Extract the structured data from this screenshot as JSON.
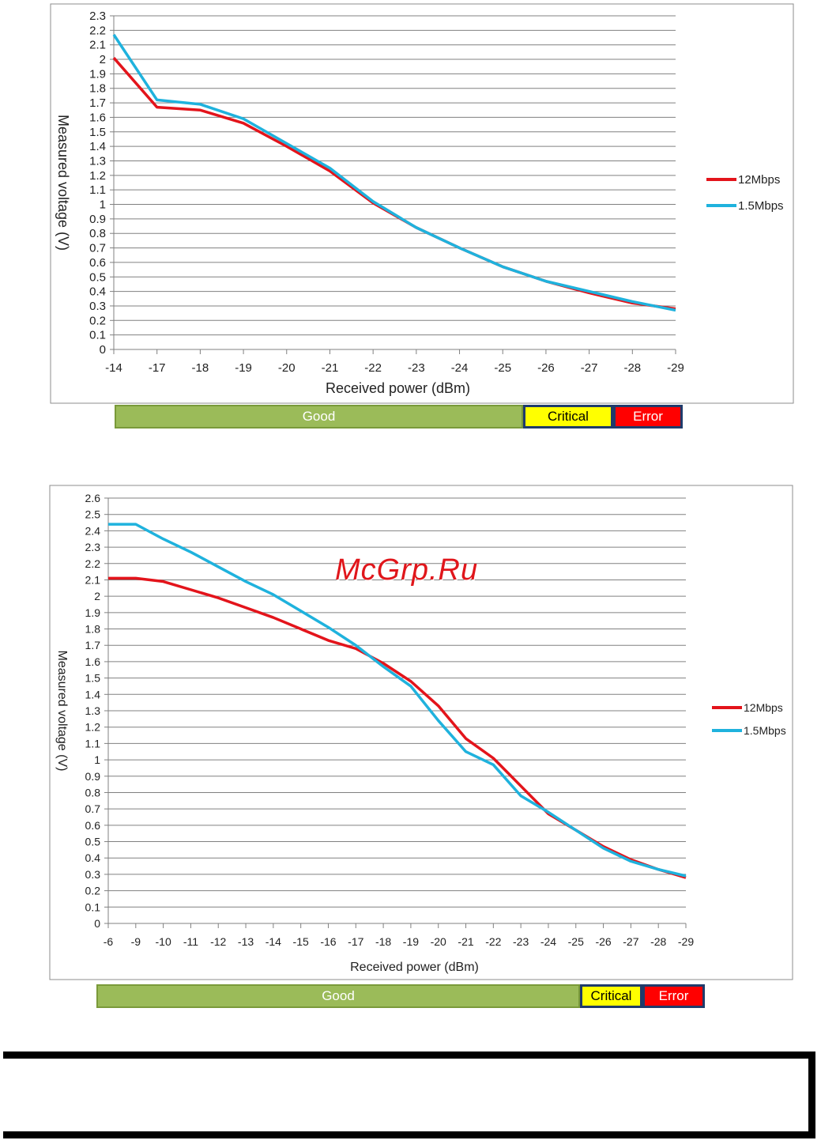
{
  "chart_data": [
    {
      "type": "line",
      "title": "",
      "xlabel": "Received power (dBm)",
      "ylabel": "Measured voltage (V)",
      "categories": [
        "-14",
        "-17",
        "-18",
        "-19",
        "-20",
        "-21",
        "-22",
        "-23",
        "-24",
        "-25",
        "-26",
        "-27",
        "-28",
        "-29"
      ],
      "ylim": [
        0,
        2.3
      ],
      "ytick_step": 0.1,
      "yticks": [
        "0",
        "0.1",
        "0.2",
        "0.3",
        "0.4",
        "0.5",
        "0.6",
        "0.7",
        "0.8",
        "0.9",
        "1",
        "1.1",
        "1.2",
        "1.3",
        "1.4",
        "1.5",
        "1.6",
        "1.7",
        "1.8",
        "1.9",
        "2",
        "2.1",
        "2.2",
        "2.3"
      ],
      "grid": true,
      "legend": "right",
      "series": [
        {
          "name": "12Mbps",
          "color": "#e3141b",
          "values": [
            2.01,
            1.67,
            1.65,
            1.56,
            1.4,
            1.23,
            1.01,
            0.84,
            0.7,
            0.57,
            0.47,
            0.39,
            0.32,
            0.28
          ]
        },
        {
          "name": "1.5Mbps",
          "color": "#1fb2dd",
          "values": [
            2.17,
            1.72,
            1.69,
            1.59,
            1.42,
            1.25,
            1.02,
            0.84,
            0.7,
            0.57,
            0.47,
            0.4,
            0.33,
            0.27
          ]
        }
      ]
    },
    {
      "type": "line",
      "title": "",
      "xlabel": "Received power (dBm)",
      "ylabel": "Measured voltage (V)",
      "categories": [
        "-6",
        "-9",
        "-10",
        "-11",
        "-12",
        "-13",
        "-14",
        "-15",
        "-16",
        "-17",
        "-18",
        "-19",
        "-20",
        "-21",
        "-22",
        "-23",
        "-24",
        "-25",
        "-26",
        "-27",
        "-28",
        "-29"
      ],
      "ylim": [
        0,
        2.6
      ],
      "ytick_step": 0.1,
      "yticks": [
        "0",
        "0.1",
        "0.2",
        "0.3",
        "0.4",
        "0.5",
        "0.6",
        "0.7",
        "0.8",
        "0.9",
        "1",
        "1.1",
        "1.2",
        "1.3",
        "1.4",
        "1.5",
        "1.6",
        "1.7",
        "1.8",
        "1.9",
        "2",
        "2.1",
        "2.2",
        "2.3",
        "2.4",
        "2.5",
        "2.6"
      ],
      "grid": true,
      "legend": "right",
      "series": [
        {
          "name": "12Mbps",
          "color": "#e3141b",
          "values": [
            2.11,
            2.11,
            2.09,
            2.04,
            1.99,
            1.93,
            1.87,
            1.8,
            1.73,
            1.68,
            1.59,
            1.48,
            1.33,
            1.13,
            1.01,
            0.84,
            0.67,
            0.57,
            0.47,
            0.39,
            0.33,
            0.28
          ]
        },
        {
          "name": "1.5Mbps",
          "color": "#1fb2dd",
          "values": [
            2.44,
            2.44,
            2.35,
            2.27,
            2.18,
            2.09,
            2.01,
            1.91,
            1.81,
            1.7,
            1.57,
            1.45,
            1.24,
            1.05,
            0.97,
            0.78,
            0.68,
            0.57,
            0.46,
            0.38,
            0.33,
            0.29
          ]
        }
      ]
    }
  ],
  "status_bars": [
    {
      "good": "Good",
      "critical": "Critical",
      "error": "Error"
    },
    {
      "good": "Good",
      "critical": "Critical",
      "error": "Error"
    }
  ],
  "watermark": "McGrp.Ru",
  "colors": {
    "good": "#9bbb59",
    "critical": "#ffff00",
    "error": "#ff0000",
    "grid": "#808080"
  }
}
